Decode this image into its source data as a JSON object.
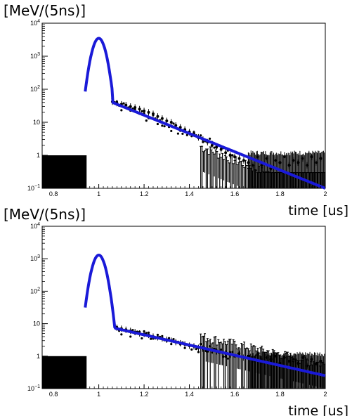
{
  "chart_data": [
    {
      "type": "scatter",
      "ylabel": "[MeV/(5ns)]",
      "xlabel": "time [us]",
      "xlim": [
        0.75,
        2.0
      ],
      "ylim": [
        0.1,
        10000
      ],
      "yscale": "log",
      "x_ticks": [
        "0.8",
        "1",
        "1.2",
        "1.4",
        "1.6",
        "1.8",
        "2"
      ],
      "y_ticks": [
        {
          "base": "10",
          "exp": "4"
        },
        {
          "base": "10",
          "exp": "3"
        },
        {
          "base": "10",
          "exp": "2"
        },
        {
          "base": "10",
          "exp": ""
        },
        {
          "base": "1",
          "exp": ""
        },
        {
          "base": "10",
          "exp": "−1"
        }
      ],
      "grid": false,
      "fit": {
        "color": "#1a1ad8",
        "peak_x": 1.0,
        "peak_y": 3500,
        "tail_start_x": 1.06,
        "tail_start_y": 40,
        "tail_end_x": 2.0,
        "tail_end_y": 0.1
      },
      "points": [
        {
          "x": 1.06,
          "y": 42
        },
        {
          "x": 1.08,
          "y": 38
        },
        {
          "x": 1.1,
          "y": 35
        },
        {
          "x": 1.12,
          "y": 33
        },
        {
          "x": 1.14,
          "y": 30
        },
        {
          "x": 1.16,
          "y": 28
        },
        {
          "x": 1.18,
          "y": 25
        },
        {
          "x": 1.2,
          "y": 22
        },
        {
          "x": 1.22,
          "y": 20
        },
        {
          "x": 1.24,
          "y": 18
        },
        {
          "x": 1.26,
          "y": 15
        },
        {
          "x": 1.28,
          "y": 13
        },
        {
          "x": 1.3,
          "y": 11
        },
        {
          "x": 1.32,
          "y": 10
        },
        {
          "x": 1.34,
          "y": 8
        },
        {
          "x": 1.36,
          "y": 7
        },
        {
          "x": 1.38,
          "y": 6
        },
        {
          "x": 1.4,
          "y": 5
        },
        {
          "x": 1.42,
          "y": 4.5
        },
        {
          "x": 1.44,
          "y": 3.5
        },
        {
          "x": 1.46,
          "y": 3
        },
        {
          "x": 1.48,
          "y": 2.5
        },
        {
          "x": 1.5,
          "y": 2
        },
        {
          "x": 1.52,
          "y": 1.8
        },
        {
          "x": 1.54,
          "y": 1.5
        },
        {
          "x": 1.56,
          "y": 1.2
        },
        {
          "x": 1.58,
          "y": 1.0
        },
        {
          "x": 1.6,
          "y": 0.9
        },
        {
          "x": 1.62,
          "y": 0.8
        },
        {
          "x": 1.64,
          "y": 0.7
        },
        {
          "x": 1.66,
          "y": 0.6
        },
        {
          "x": 1.68,
          "y": 0.5
        },
        {
          "x": 1.7,
          "y": 0.9
        },
        {
          "x": 1.72,
          "y": 0.5
        },
        {
          "x": 1.74,
          "y": 0.8
        },
        {
          "x": 1.76,
          "y": 0.4
        },
        {
          "x": 1.78,
          "y": 0.7
        },
        {
          "x": 1.8,
          "y": 0.6
        },
        {
          "x": 1.82,
          "y": 0.9
        },
        {
          "x": 1.84,
          "y": 0.5
        },
        {
          "x": 1.86,
          "y": 0.7
        },
        {
          "x": 1.88,
          "y": 0.6
        },
        {
          "x": 1.9,
          "y": 0.8
        },
        {
          "x": 1.92,
          "y": 0.5
        },
        {
          "x": 1.94,
          "y": 0.9
        },
        {
          "x": 1.96,
          "y": 0.6
        },
        {
          "x": 1.98,
          "y": 0.8
        }
      ],
      "baseline": {
        "x_from": 0.75,
        "x_to": 0.94,
        "y": 1
      }
    },
    {
      "type": "scatter",
      "ylabel": "[MeV/(5ns)]",
      "xlabel": "time [us]",
      "xlim": [
        0.75,
        2.0
      ],
      "ylim": [
        0.1,
        10000
      ],
      "yscale": "log",
      "x_ticks": [
        "0.8",
        "1",
        "1.2",
        "1.4",
        "1.6",
        "1.8",
        "2"
      ],
      "y_ticks": [
        {
          "base": "10",
          "exp": "4"
        },
        {
          "base": "10",
          "exp": "3"
        },
        {
          "base": "10",
          "exp": "2"
        },
        {
          "base": "10",
          "exp": ""
        },
        {
          "base": "1",
          "exp": ""
        },
        {
          "base": "10",
          "exp": "−1"
        }
      ],
      "grid": false,
      "fit": {
        "color": "#1a1ad8",
        "peak_x": 1.0,
        "peak_y": 1300,
        "tail_start_x": 1.08,
        "tail_start_y": 7,
        "tail_end_x": 2.0,
        "tail_end_y": 0.25
      },
      "points": [
        {
          "x": 1.08,
          "y": 7.5
        },
        {
          "x": 1.1,
          "y": 7
        },
        {
          "x": 1.12,
          "y": 6.5
        },
        {
          "x": 1.14,
          "y": 6
        },
        {
          "x": 1.16,
          "y": 5.5
        },
        {
          "x": 1.18,
          "y": 5
        },
        {
          "x": 1.2,
          "y": 4.8
        },
        {
          "x": 1.22,
          "y": 4.5
        },
        {
          "x": 1.24,
          "y": 4
        },
        {
          "x": 1.26,
          "y": 3.8
        },
        {
          "x": 1.28,
          "y": 3.5
        },
        {
          "x": 1.3,
          "y": 3.2
        },
        {
          "x": 1.32,
          "y": 3
        },
        {
          "x": 1.34,
          "y": 2.7
        },
        {
          "x": 1.36,
          "y": 2.5
        },
        {
          "x": 1.38,
          "y": 2.3
        },
        {
          "x": 1.4,
          "y": 2.1
        },
        {
          "x": 1.42,
          "y": 2
        },
        {
          "x": 1.44,
          "y": 1.8
        },
        {
          "x": 1.46,
          "y": 1.7
        },
        {
          "x": 1.48,
          "y": 1.6
        },
        {
          "x": 1.5,
          "y": 1.5
        },
        {
          "x": 1.52,
          "y": 1.4
        },
        {
          "x": 1.54,
          "y": 1.3
        },
        {
          "x": 1.56,
          "y": 1.2
        },
        {
          "x": 1.58,
          "y": 1.1
        },
        {
          "x": 1.6,
          "y": 1.0
        },
        {
          "x": 1.62,
          "y": 1.2
        },
        {
          "x": 1.64,
          "y": 0.9
        },
        {
          "x": 1.66,
          "y": 1.0
        },
        {
          "x": 1.68,
          "y": 0.8
        },
        {
          "x": 1.7,
          "y": 1.1
        },
        {
          "x": 1.72,
          "y": 0.7
        },
        {
          "x": 1.74,
          "y": 0.9
        },
        {
          "x": 1.76,
          "y": 0.8
        },
        {
          "x": 1.78,
          "y": 1.0
        },
        {
          "x": 1.8,
          "y": 0.6
        },
        {
          "x": 1.82,
          "y": 0.9
        },
        {
          "x": 1.84,
          "y": 0.7
        },
        {
          "x": 1.86,
          "y": 0.8
        },
        {
          "x": 1.88,
          "y": 0.6
        },
        {
          "x": 1.9,
          "y": 0.9
        },
        {
          "x": 1.92,
          "y": 0.5
        },
        {
          "x": 1.94,
          "y": 0.8
        },
        {
          "x": 1.96,
          "y": 0.6
        },
        {
          "x": 1.98,
          "y": 0.7
        }
      ],
      "baseline": {
        "x_from": 0.75,
        "x_to": 0.94,
        "y": 1
      }
    }
  ]
}
